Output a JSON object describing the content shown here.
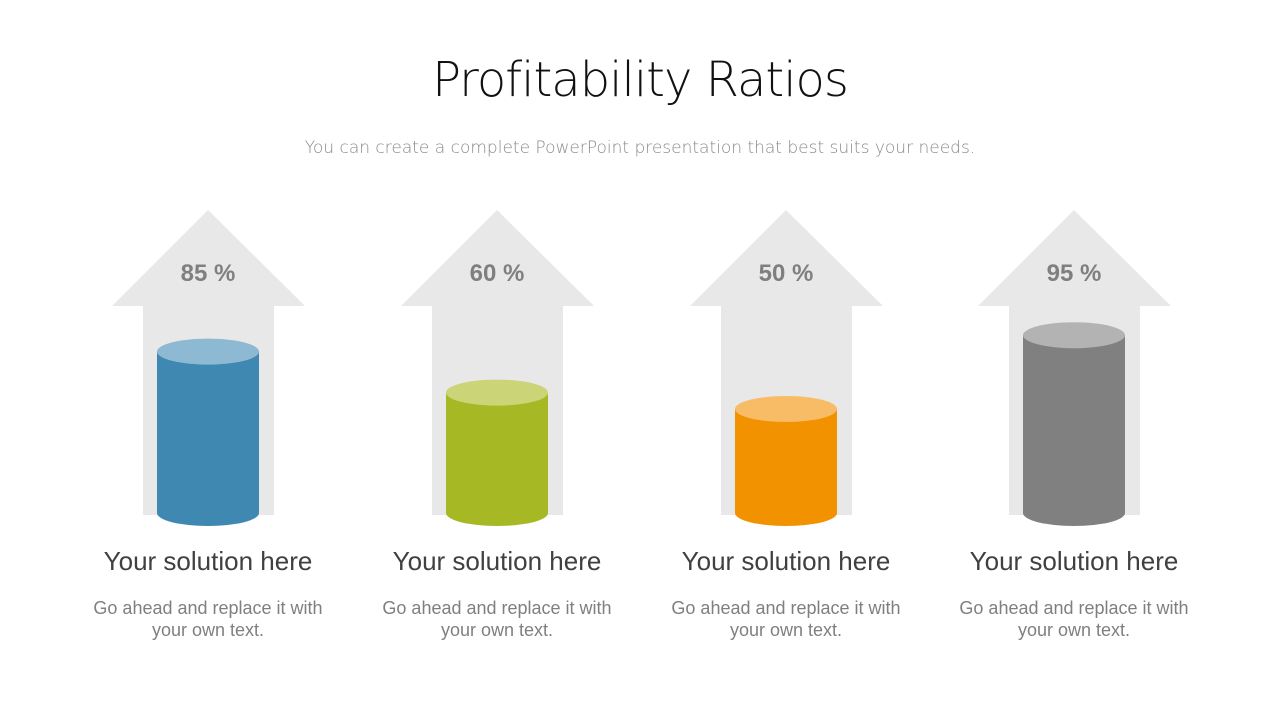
{
  "title": "Profitability Ratios",
  "subtitle": "You can create a complete PowerPoint presentation that best suits your needs.",
  "chart_data": {
    "type": "bar",
    "style": "cylinders inside upward arrows",
    "categories": [
      "Your solution here",
      "Your solution here",
      "Your solution here",
      "Your solution here"
    ],
    "values": [
      85,
      60,
      50,
      95
    ],
    "data_labels": [
      "85 %",
      "60 %",
      "50 %",
      "95 %"
    ],
    "descriptions": [
      "Go ahead and replace it with your own text.",
      "Go ahead and replace it with your own text.",
      "Go ahead and replace it with your own text.",
      "Go ahead and replace it with your own text."
    ],
    "colors": [
      {
        "body": "#3f88b2",
        "top": "#8db9d2"
      },
      {
        "body": "#a6b925",
        "top": "#cbd476"
      },
      {
        "body": "#f39200",
        "top": "#f9bc66"
      },
      {
        "body": "#808080",
        "top": "#b3b3b3"
      }
    ],
    "arrow_color": "#e8e8e8",
    "grid": false,
    "legend": "none"
  }
}
